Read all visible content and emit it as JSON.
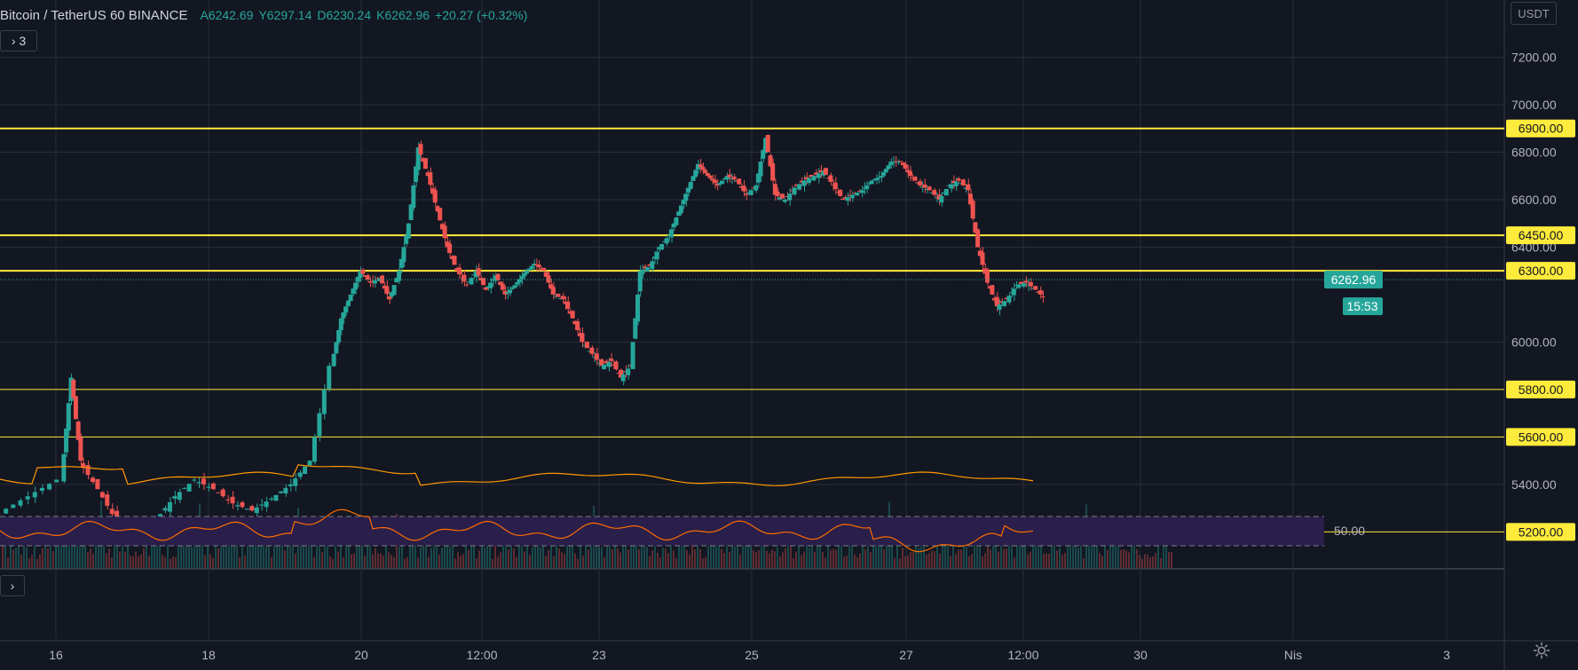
{
  "header": {
    "symbol": "Bitcoin / TetherUS 60 BINANCE",
    "open": "A6242.69",
    "high": "Y6297.14",
    "low": "D6230.24",
    "close": "K6262.96",
    "change": "+20.27 (+0.32%)"
  },
  "indicator_toggle": "› 3",
  "rsi_toggle": "›",
  "currency": "USDT",
  "colors": {
    "background": "#131722",
    "grid": "#2a2e39",
    "up": "#26a69a",
    "down": "#ef5350",
    "level": "#ffeb3b",
    "ma": "#ff9800",
    "rsi": "#ff6d00",
    "rsi_band": "#2a1e4a"
  },
  "chart_data": {
    "type": "candlestick",
    "y_ticks": [
      "7200.00",
      "7000.00",
      "6800.00",
      "6600.00",
      "6400.00",
      "6000.00",
      "5400.00"
    ],
    "x_ticks": [
      "16",
      "18",
      "20",
      "12:00",
      "23",
      "25",
      "27",
      "12:00",
      "30",
      "Nis",
      "3"
    ],
    "levels": [
      "6900.00",
      "6450.00",
      "6300.00",
      "5800.00",
      "5600.00",
      "5200.00"
    ],
    "last_price": "6262.96",
    "countdown": "15:53",
    "rsi_label": "50.00",
    "price_path": [
      [
        0,
        5280
      ],
      [
        3,
        5350
      ],
      [
        6,
        5420
      ],
      [
        7,
        5850
      ],
      [
        8,
        5500
      ],
      [
        10,
        5380
      ],
      [
        12,
        5240
      ],
      [
        14,
        5200
      ],
      [
        16,
        5250
      ],
      [
        18,
        5350
      ],
      [
        20,
        5420
      ],
      [
        22,
        5380
      ],
      [
        24,
        5320
      ],
      [
        26,
        5290
      ],
      [
        28,
        5340
      ],
      [
        30,
        5400
      ],
      [
        32,
        5500
      ],
      [
        34,
        5900
      ],
      [
        35,
        6100
      ],
      [
        36,
        6200
      ],
      [
        37,
        6300
      ],
      [
        38,
        6250
      ],
      [
        39,
        6270
      ],
      [
        40,
        6180
      ],
      [
        41,
        6300
      ],
      [
        42,
        6500
      ],
      [
        43,
        6820
      ],
      [
        44,
        6700
      ],
      [
        45,
        6550
      ],
      [
        46,
        6400
      ],
      [
        47,
        6300
      ],
      [
        48,
        6240
      ],
      [
        49,
        6300
      ],
      [
        50,
        6220
      ],
      [
        51,
        6280
      ],
      [
        52,
        6200
      ],
      [
        53,
        6240
      ],
      [
        54,
        6290
      ],
      [
        55,
        6330
      ],
      [
        56,
        6300
      ],
      [
        57,
        6200
      ],
      [
        58,
        6180
      ],
      [
        59,
        6100
      ],
      [
        60,
        6000
      ],
      [
        61,
        5950
      ],
      [
        62,
        5900
      ],
      [
        63,
        5920
      ],
      [
        64,
        5850
      ],
      [
        65,
        5900
      ],
      [
        66,
        6300
      ],
      [
        67,
        6320
      ],
      [
        68,
        6400
      ],
      [
        69,
        6450
      ],
      [
        70,
        6550
      ],
      [
        71,
        6650
      ],
      [
        72,
        6750
      ],
      [
        73,
        6700
      ],
      [
        74,
        6660
      ],
      [
        75,
        6700
      ],
      [
        76,
        6680
      ],
      [
        77,
        6620
      ],
      [
        78,
        6660
      ],
      [
        79,
        6860
      ],
      [
        80,
        6620
      ],
      [
        81,
        6600
      ],
      [
        82,
        6650
      ],
      [
        83,
        6680
      ],
      [
        84,
        6700
      ],
      [
        85,
        6720
      ],
      [
        86,
        6660
      ],
      [
        87,
        6600
      ],
      [
        88,
        6620
      ],
      [
        89,
        6640
      ],
      [
        90,
        6680
      ],
      [
        91,
        6700
      ],
      [
        92,
        6760
      ],
      [
        93,
        6760
      ],
      [
        94,
        6700
      ],
      [
        95,
        6660
      ],
      [
        96,
        6640
      ],
      [
        97,
        6600
      ],
      [
        98,
        6660
      ],
      [
        99,
        6680
      ],
      [
        100,
        6640
      ],
      [
        101,
        6400
      ],
      [
        102,
        6250
      ],
      [
        103,
        6150
      ],
      [
        104,
        6180
      ],
      [
        105,
        6240
      ],
      [
        106,
        6250
      ],
      [
        107,
        6220
      ],
      [
        108,
        6180
      ],
      [
        109,
        6260
      ],
      [
        110,
        6200
      ],
      [
        111,
        6180
      ],
      [
        112,
        6220
      ],
      [
        113,
        6160
      ],
      [
        114,
        6120
      ],
      [
        115,
        6140
      ],
      [
        116,
        6100
      ],
      [
        117,
        6080
      ],
      [
        118,
        6120
      ],
      [
        119,
        6060
      ],
      [
        120,
        5900
      ],
      [
        121,
        5880
      ],
      [
        122,
        5950
      ],
      [
        123,
        6050
      ],
      [
        124,
        6150
      ],
      [
        125,
        6230
      ],
      [
        126,
        6263
      ]
    ]
  }
}
